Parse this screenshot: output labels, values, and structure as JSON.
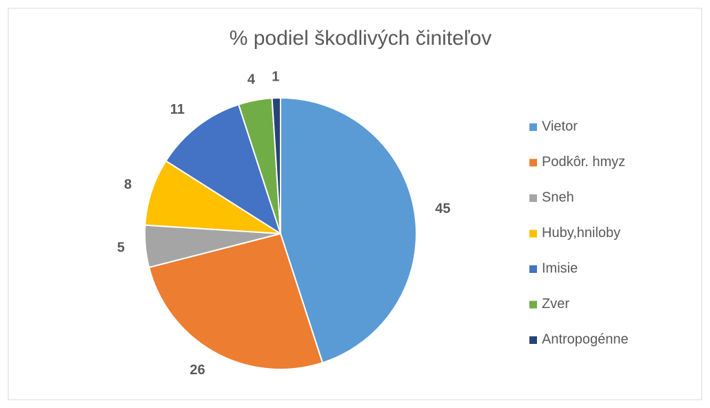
{
  "chart_data": {
    "type": "pie",
    "title": "% podiel škodlivých činiteľov",
    "categories": [
      "Vietor",
      "Podkôr. hmyz",
      "Sneh",
      "Huby,hniloby",
      "Imisie",
      "Zver",
      "Antropogénne"
    ],
    "values": [
      45,
      26,
      5,
      8,
      11,
      4,
      1
    ],
    "colors": [
      "#5b9bd5",
      "#ed7d31",
      "#a5a5a5",
      "#ffc000",
      "#4472c4",
      "#70ad47",
      "#264478"
    ],
    "legend": "right"
  }
}
